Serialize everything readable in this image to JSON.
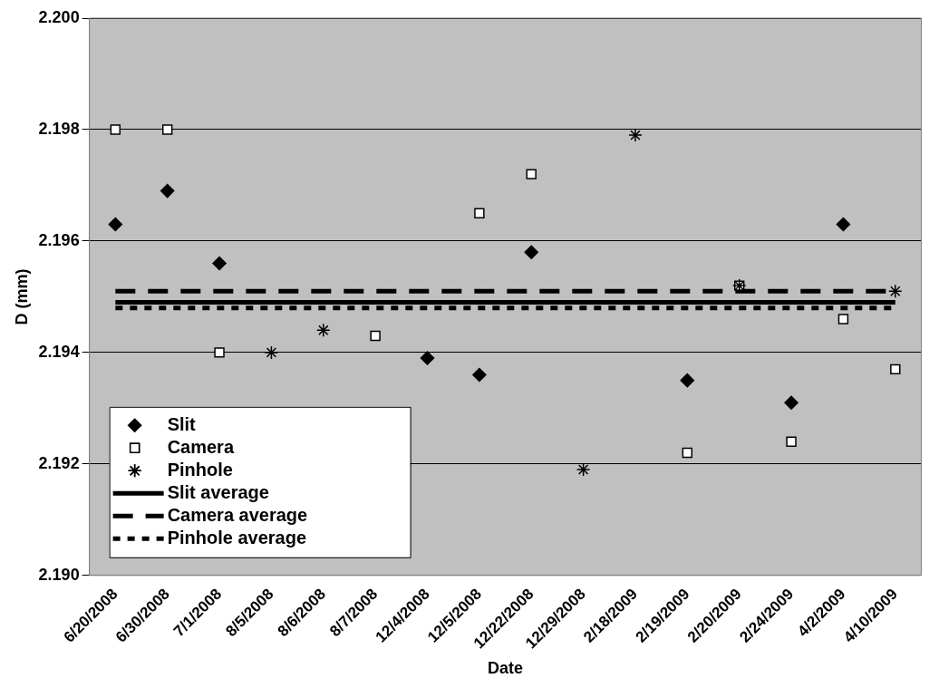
{
  "chart_data": {
    "type": "scatter",
    "xlabel": "Date",
    "ylabel": "D (mm)",
    "categories": [
      "6/20/2008",
      "6/30/2008",
      "7/1/2008",
      "8/5/2008",
      "8/6/2008",
      "8/7/2008",
      "12/4/2008",
      "12/5/2008",
      "12/22/2008",
      "12/29/2008",
      "2/18/2009",
      "2/19/2009",
      "2/20/2009",
      "2/24/2009",
      "4/2/2009",
      "4/10/2009"
    ],
    "series": [
      {
        "name": "Slit",
        "marker": "diamond",
        "color": "#000000",
        "values": [
          2.1963,
          2.1969,
          2.1956,
          null,
          null,
          null,
          2.1939,
          2.1936,
          2.1958,
          null,
          null,
          2.1935,
          null,
          2.1931,
          2.1963,
          null
        ]
      },
      {
        "name": "Camera",
        "marker": "square",
        "color": "#000000",
        "values": [
          2.198,
          2.198,
          2.194,
          null,
          null,
          2.1943,
          null,
          2.1965,
          2.1972,
          null,
          null,
          2.1922,
          2.1952,
          2.1924,
          2.1946,
          2.1937
        ]
      },
      {
        "name": "Pinhole",
        "marker": "cross",
        "color": "#000000",
        "values": [
          null,
          null,
          null,
          2.194,
          2.1944,
          null,
          null,
          null,
          null,
          2.1919,
          2.1979,
          null,
          2.1952,
          null,
          null,
          2.1951
        ]
      },
      {
        "name": "Slit average",
        "type": "line",
        "marker": "none",
        "line_style": "solid",
        "color": "#000000",
        "values": [
          2.1949,
          2.1949,
          2.1949,
          2.1949,
          2.1949,
          2.1949,
          2.1949,
          2.1949,
          2.1949,
          2.1949,
          2.1949,
          2.1949,
          2.1949,
          2.1949,
          2.1949,
          2.1949
        ]
      },
      {
        "name": "Camera average",
        "type": "line",
        "marker": "none",
        "line_style": "dashed",
        "color": "#000000",
        "values": [
          2.1951,
          2.1951,
          2.1951,
          2.1951,
          2.1951,
          2.1951,
          2.1951,
          2.1951,
          2.1951,
          2.1951,
          2.1951,
          2.1951,
          2.1951,
          2.1951,
          2.1951,
          2.1951
        ]
      },
      {
        "name": "Pinhole average",
        "type": "line",
        "marker": "none",
        "line_style": "dotted",
        "color": "#000000",
        "values": [
          2.1948,
          2.1948,
          2.1948,
          2.1948,
          2.1948,
          2.1948,
          2.1948,
          2.1948,
          2.1948,
          2.1948,
          2.1948,
          2.1948,
          2.1948,
          2.1948,
          2.1948,
          2.1948
        ]
      }
    ],
    "ylim": [
      2.19,
      2.2
    ],
    "yticks": [
      {
        "value": 2.19,
        "label": "2.190"
      },
      {
        "value": 2.192,
        "label": "2.192"
      },
      {
        "value": 2.194,
        "label": "2.194"
      },
      {
        "value": 2.196,
        "label": "2.196"
      },
      {
        "value": 2.198,
        "label": "2.198"
      },
      {
        "value": 2.2,
        "label": "2.200"
      }
    ],
    "grid": "y",
    "legend": "bottom left"
  }
}
